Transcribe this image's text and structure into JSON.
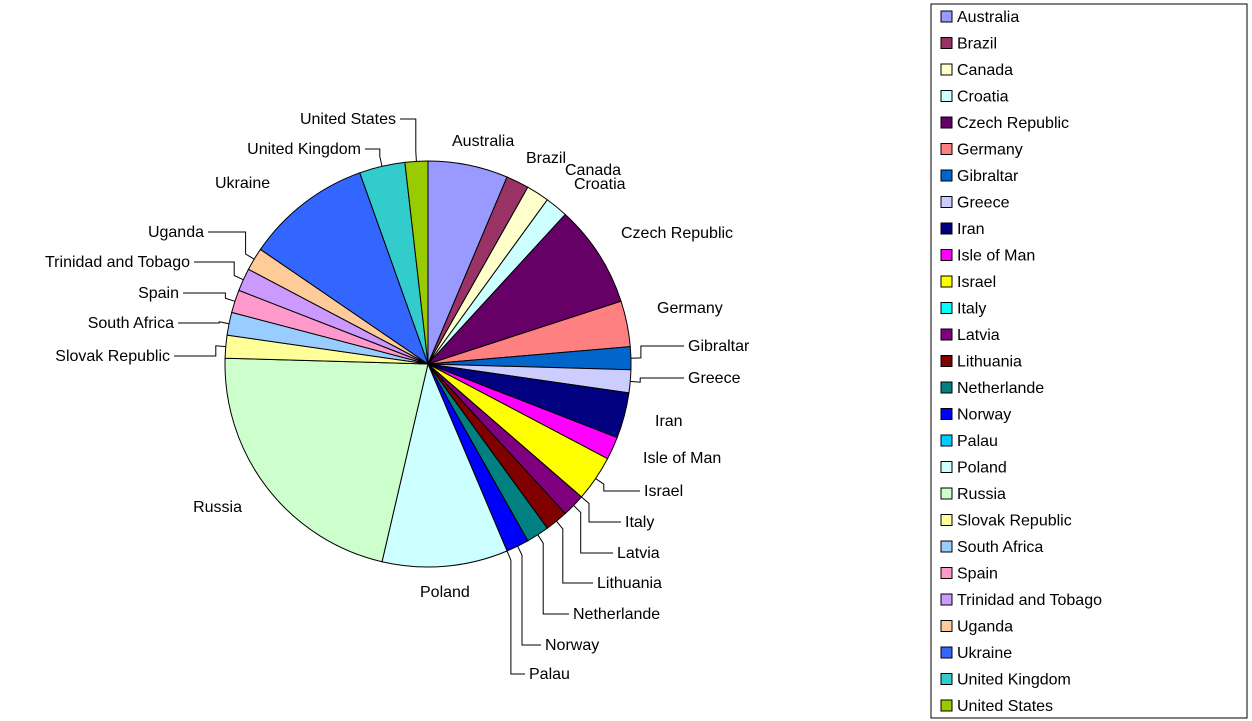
{
  "chart_data": {
    "type": "pie",
    "title": "",
    "legend_position": "right",
    "start_angle_deg": 0,
    "direction": "clockwise",
    "slices": [
      {
        "label": "Australia",
        "value": 7,
        "color": "#9999ff"
      },
      {
        "label": "Brazil",
        "value": 2,
        "color": "#993366"
      },
      {
        "label": "Canada",
        "value": 2,
        "color": "#ffffcc"
      },
      {
        "label": "Croatia",
        "value": 2,
        "color": "#ccffff"
      },
      {
        "label": "Czech Republic",
        "value": 9,
        "color": "#660066"
      },
      {
        "label": "Germany",
        "value": 4,
        "color": "#ff8080"
      },
      {
        "label": "Gibraltar",
        "value": 2,
        "color": "#0066cc"
      },
      {
        "label": "Greece",
        "value": 2,
        "color": "#ccccff"
      },
      {
        "label": "Iran",
        "value": 4,
        "color": "#000080"
      },
      {
        "label": "Isle of Man",
        "value": 2,
        "color": "#ff00ff"
      },
      {
        "label": "Israel",
        "value": 4,
        "color": "#ffff00"
      },
      {
        "label": "Italy",
        "value": 0,
        "color": "#00ffff"
      },
      {
        "label": "Latvia",
        "value": 2,
        "color": "#800080"
      },
      {
        "label": "Lithuania",
        "value": 2,
        "color": "#800000"
      },
      {
        "label": "Netherlande",
        "value": 2,
        "color": "#008080"
      },
      {
        "label": "Norway",
        "value": 2,
        "color": "#0000ff"
      },
      {
        "label": "Palau",
        "value": 0,
        "color": "#00ccff"
      },
      {
        "label": "Poland",
        "value": 11,
        "color": "#ccffff"
      },
      {
        "label": "Russia",
        "value": 24,
        "color": "#ccffcc"
      },
      {
        "label": "Slovak Republic",
        "value": 2,
        "color": "#ffff99"
      },
      {
        "label": "South Africa",
        "value": 2,
        "color": "#99ccff"
      },
      {
        "label": "Spain",
        "value": 2,
        "color": "#ff99cc"
      },
      {
        "label": "Trinidad and Tobago",
        "value": 2,
        "color": "#cc99ff"
      },
      {
        "label": "Uganda",
        "value": 2,
        "color": "#ffcc99"
      },
      {
        "label": "Ukraine",
        "value": 11,
        "color": "#3366ff"
      },
      {
        "label": "United Kingdom",
        "value": 4,
        "color": "#33cccc"
      },
      {
        "label": "United States",
        "value": 2,
        "color": "#99cc00"
      }
    ]
  }
}
